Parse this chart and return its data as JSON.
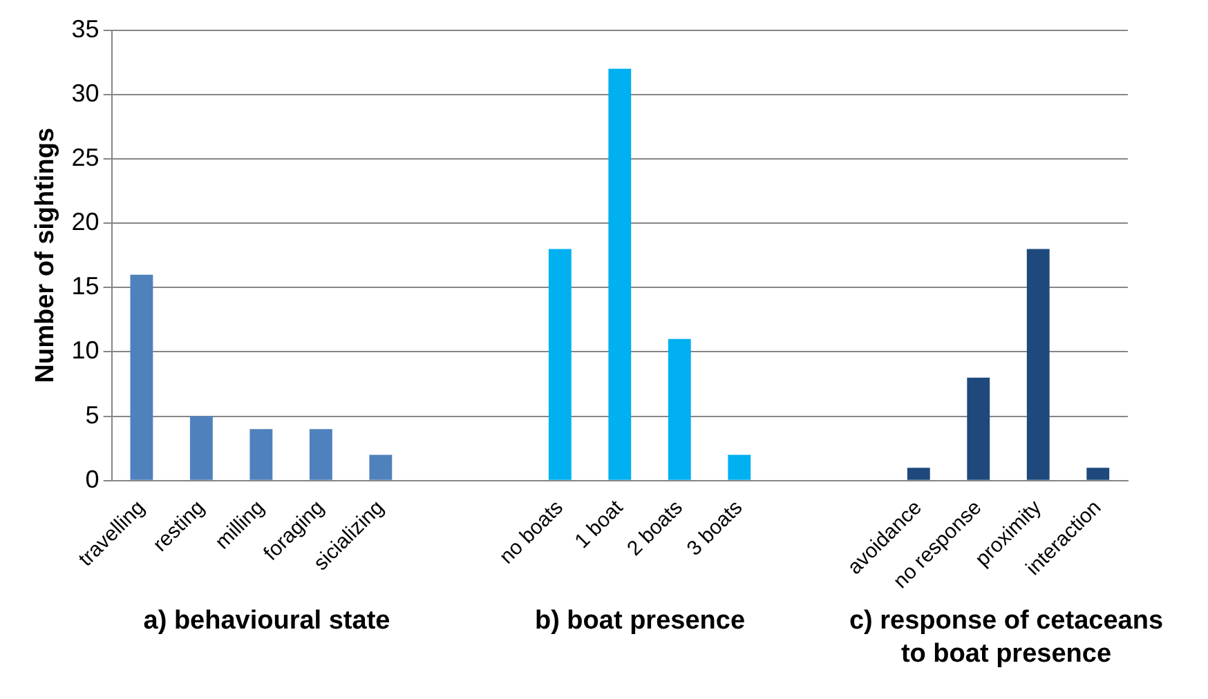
{
  "chart_data": {
    "type": "bar",
    "ylabel": "Number of sightings",
    "categories": [
      "travelling",
      "resting",
      "milling",
      "foraging",
      "sicializing",
      null,
      null,
      "no boats",
      "1 boat",
      "2 boats",
      "3 boats",
      null,
      null,
      "avoidance",
      "no response",
      "proximity",
      "interaction"
    ],
    "values": [
      16,
      5,
      4,
      4,
      2,
      null,
      null,
      18,
      32,
      11,
      2,
      null,
      null,
      1,
      8,
      18,
      1
    ],
    "colors": [
      "#4f81bd",
      "#4f81bd",
      "#4f81bd",
      "#4f81bd",
      "#4f81bd",
      "#4f81bd",
      "#4f81bd",
      "#00b0f0",
      "#00b0f0",
      "#00b0f0",
      "#00b0f0",
      "#00b0f0",
      "#00b0f0",
      "#1f497d",
      "#1f497d",
      "#1f497d",
      "#1f497d"
    ],
    "ylim": [
      0,
      35
    ],
    "yticks": [
      0,
      5,
      10,
      15,
      20,
      25,
      30,
      35
    ],
    "grid": "y",
    "legend": false,
    "annotations": [
      "a) behavioural state",
      "b) boat presence",
      "c) response of cetaceans to boat presence"
    ]
  }
}
